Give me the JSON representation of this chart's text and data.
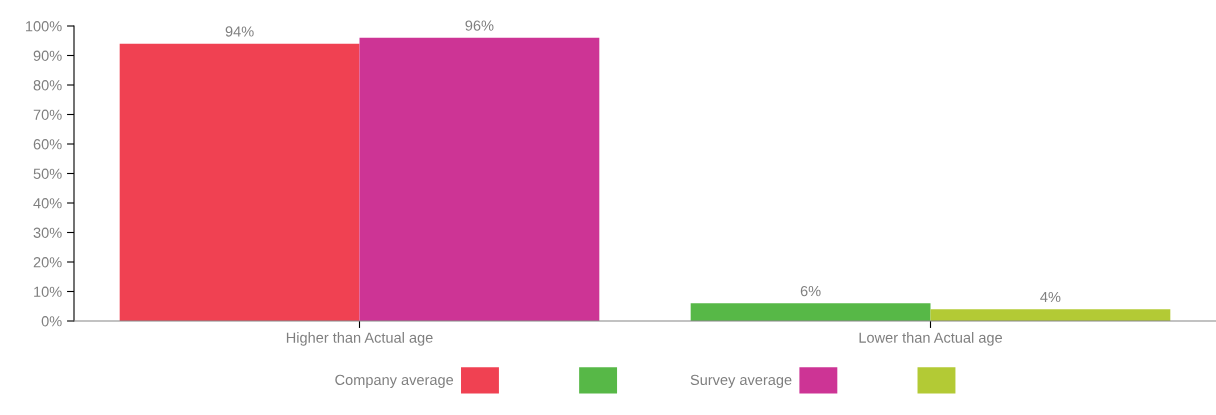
{
  "chart_data": {
    "type": "bar",
    "categories": [
      "Higher than Actual age",
      "Lower than Actual age"
    ],
    "series": [
      {
        "name": "Company average",
        "colors": [
          "#f04152",
          "#57b847"
        ],
        "values": [
          94,
          6
        ],
        "value_labels": [
          "94%",
          "6%"
        ]
      },
      {
        "name": "Survey average",
        "colors": [
          "#cd3495",
          "#b3ca35"
        ],
        "values": [
          96,
          4
        ],
        "value_labels": [
          "96%",
          "4%"
        ]
      }
    ],
    "ylim": [
      0,
      100
    ],
    "yticks": [
      {
        "value": 0,
        "label": "0%"
      },
      {
        "value": 10,
        "label": "10%"
      },
      {
        "value": 20,
        "label": "20%"
      },
      {
        "value": 30,
        "label": "30%"
      },
      {
        "value": 40,
        "label": "40%"
      },
      {
        "value": 50,
        "label": "50%"
      },
      {
        "value": 60,
        "label": "60%"
      },
      {
        "value": 70,
        "label": "70%"
      },
      {
        "value": 80,
        "label": "80%"
      },
      {
        "value": 90,
        "label": "90%"
      },
      {
        "value": 100,
        "label": "100%"
      }
    ],
    "grid": false,
    "legend": "bottom"
  }
}
